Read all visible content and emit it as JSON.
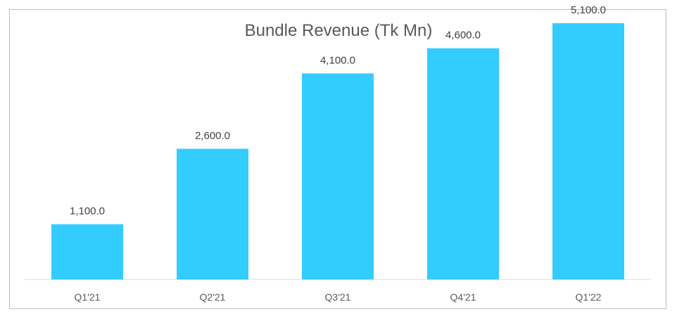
{
  "chart_data": {
    "type": "bar",
    "title": "Bundle Revenue (Tk Mn)",
    "categories": [
      "Q1'21",
      "Q2'21",
      "Q3'21",
      "Q4'21",
      "Q1'22"
    ],
    "values": [
      1100,
      2600,
      4100,
      4600,
      5100
    ],
    "data_labels": [
      "1,100.0",
      "2,600.0",
      "4,100.0",
      "4,600.0",
      "5,100.0"
    ],
    "xlabel": "",
    "ylabel": "",
    "ylim": [
      0,
      5400
    ],
    "grid": false,
    "legend": "none",
    "bar_color": "#33CCFF",
    "axis_color": "#D9D9D9"
  }
}
